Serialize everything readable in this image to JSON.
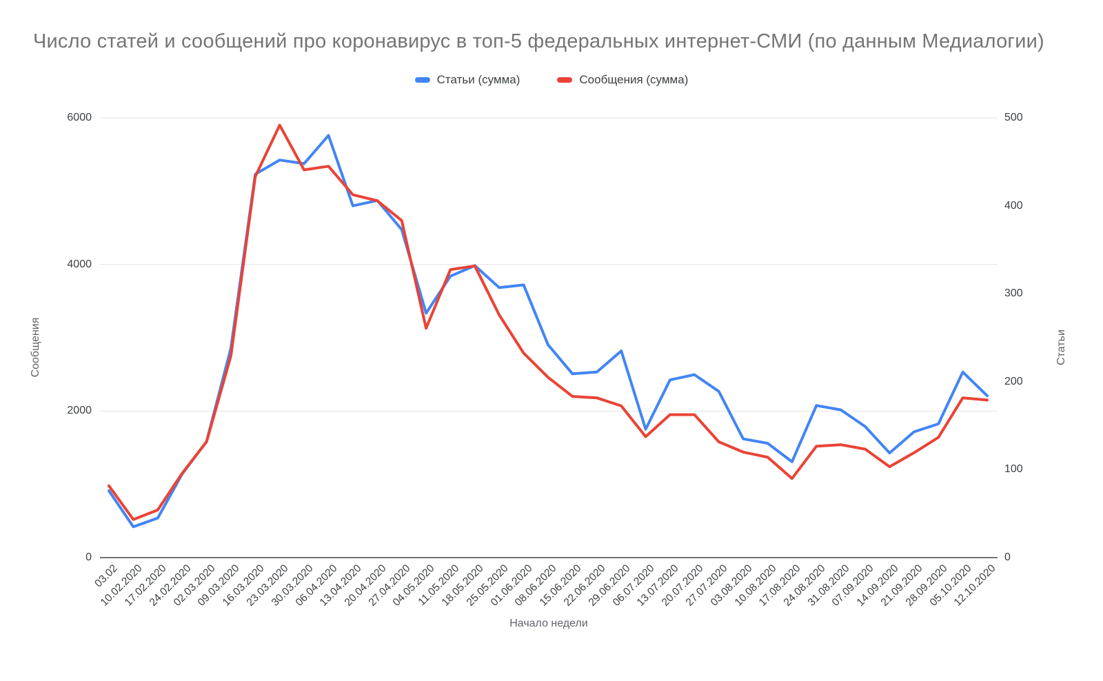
{
  "title": "Число статей и сообщений про коронавирус в топ-5 федеральных интернет-СМИ (по данным Медиалогии)",
  "legend": [
    {
      "label": "Статьи (сумма)",
      "color": "#4285f4"
    },
    {
      "label": "Сообщения (сумма)",
      "color": "#ea4335"
    }
  ],
  "axes": {
    "left": {
      "title": "Сообщения",
      "ticks": [
        0,
        2000,
        4000,
        6000
      ],
      "max": 6000
    },
    "right": {
      "title": "Статьи",
      "ticks": [
        0,
        100,
        200,
        300,
        400,
        500
      ],
      "max": 500
    },
    "x": {
      "title": "Начало недели"
    }
  },
  "colors": {
    "gridline": "#e3e3e3",
    "baseline": "#424242",
    "articles": "#4285f4",
    "messages": "#ea4335"
  },
  "chart_data": {
    "type": "line",
    "title": "Число статей и сообщений про коронавирус в топ-5 федеральных интернет-СМИ (по данным Медиалогии)",
    "xlabel": "Начало недели",
    "ylabel_left": "Сообщения",
    "ylabel_right": "Статьи",
    "ylim_left": [
      0,
      6000
    ],
    "ylim_right": [
      0,
      500
    ],
    "grid": true,
    "legend_position": "top",
    "categories": [
      "03.02",
      "10.02.2020",
      "17.02.2020",
      "24.02.2020",
      "02.03.2020",
      "09.03.2020",
      "16.03.2020",
      "23.03.2020",
      "30.03.2020",
      "06.04.2020",
      "13.04.2020",
      "20.04.2020",
      "27.04.2020",
      "04.05.2020",
      "11.05.2020",
      "18.05.2020",
      "25.05.2020",
      "01.06.2020",
      "08.06.2020",
      "15.06.2020",
      "22.06.2020",
      "29.06.2020",
      "06.07.2020",
      "13.07.2020",
      "20.07.2020",
      "27.07.2020",
      "03.08.2020",
      "10.08.2020",
      "17.08.2020",
      "24.08.2020",
      "31.08.2020",
      "07.09.2020",
      "14.09.2020",
      "21.09.2020",
      "28.09.2020",
      "05.10.2020",
      "12.10.2020"
    ],
    "series": [
      {
        "name": "Статьи (сумма)",
        "axis": "right",
        "color": "#4285f4",
        "values": [
          76,
          35,
          45,
          95,
          132,
          238,
          436,
          452,
          448,
          480,
          400,
          406,
          373,
          278,
          320,
          332,
          307,
          310,
          242,
          209,
          211,
          235,
          146,
          202,
          208,
          189,
          135,
          130,
          109,
          173,
          168,
          149,
          119,
          143,
          152,
          211,
          184
        ]
      },
      {
        "name": "Сообщения (сумма)",
        "axis": "left",
        "color": "#ea4335",
        "values": [
          980,
          520,
          650,
          1150,
          1580,
          2750,
          5200,
          5900,
          5290,
          5340,
          4950,
          4870,
          4600,
          3130,
          3930,
          3980,
          3310,
          2790,
          2460,
          2200,
          2180,
          2070,
          1650,
          1950,
          1950,
          1580,
          1440,
          1370,
          1080,
          1520,
          1540,
          1480,
          1240,
          1430,
          1640,
          2180,
          2150
        ]
      }
    ]
  }
}
